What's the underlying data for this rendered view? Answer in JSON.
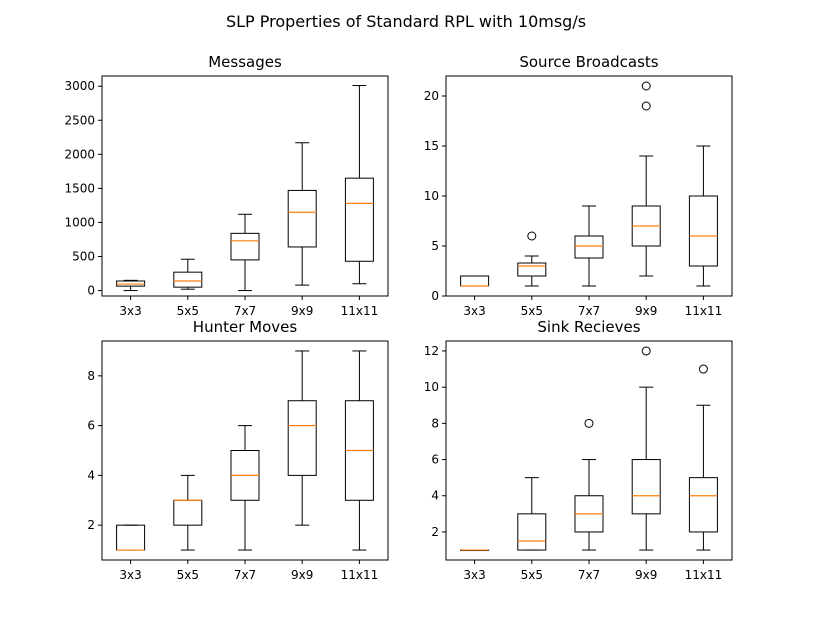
{
  "suptitle": "SLP Properties of Standard RPL with 10msg/s",
  "style": {
    "box_color": "#000000",
    "median_color": "#ff7f0e",
    "flier_color": "#000000"
  },
  "chart_data": [
    {
      "type": "box",
      "title": "Messages",
      "categories": [
        "3x3",
        "5x5",
        "7x7",
        "9x9",
        "11x11"
      ],
      "ylim": [
        -80,
        3150
      ],
      "yticks": [
        0,
        500,
        1000,
        1500,
        2000,
        2500,
        3000
      ],
      "boxes": [
        {
          "whislo": 0,
          "q1": 65,
          "med": 95,
          "q3": 140,
          "whishi": 150,
          "fliers": []
        },
        {
          "whislo": 20,
          "q1": 50,
          "med": 140,
          "q3": 270,
          "whishi": 460,
          "fliers": []
        },
        {
          "whislo": 0,
          "q1": 450,
          "med": 730,
          "q3": 840,
          "whishi": 1120,
          "fliers": []
        },
        {
          "whislo": 80,
          "q1": 640,
          "med": 1150,
          "q3": 1470,
          "whishi": 2170,
          "fliers": []
        },
        {
          "whislo": 100,
          "q1": 430,
          "med": 1280,
          "q3": 1650,
          "whishi": 3010,
          "fliers": []
        }
      ]
    },
    {
      "type": "box",
      "title": "Source Broadcasts",
      "categories": [
        "3x3",
        "5x5",
        "7x7",
        "9x9",
        "11x11"
      ],
      "ylim": [
        0,
        22
      ],
      "yticks": [
        0,
        5,
        10,
        15,
        20
      ],
      "boxes": [
        {
          "whislo": 1,
          "q1": 1,
          "med": 1,
          "q3": 2,
          "whishi": 2,
          "fliers": []
        },
        {
          "whislo": 1,
          "q1": 2,
          "med": 3,
          "q3": 3.3,
          "whishi": 4,
          "fliers": [
            6
          ]
        },
        {
          "whislo": 1,
          "q1": 3.8,
          "med": 5,
          "q3": 6,
          "whishi": 9,
          "fliers": []
        },
        {
          "whislo": 2,
          "q1": 5,
          "med": 7,
          "q3": 9,
          "whishi": 14,
          "fliers": [
            19,
            21
          ]
        },
        {
          "whislo": 1,
          "q1": 3,
          "med": 6,
          "q3": 10,
          "whishi": 15,
          "fliers": []
        }
      ]
    },
    {
      "type": "box",
      "title": "Hunter Moves",
      "categories": [
        "3x3",
        "5x5",
        "7x7",
        "9x9",
        "11x11"
      ],
      "ylim": [
        0.6,
        9.4
      ],
      "yticks": [
        2,
        4,
        6,
        8
      ],
      "boxes": [
        {
          "whislo": 1,
          "q1": 1,
          "med": 1,
          "q3": 2,
          "whishi": 2,
          "fliers": []
        },
        {
          "whislo": 1,
          "q1": 2,
          "med": 3,
          "q3": 3,
          "whishi": 4,
          "fliers": []
        },
        {
          "whislo": 1,
          "q1": 3,
          "med": 4,
          "q3": 5,
          "whishi": 6,
          "fliers": []
        },
        {
          "whislo": 2,
          "q1": 4,
          "med": 6,
          "q3": 7,
          "whishi": 9,
          "fliers": []
        },
        {
          "whislo": 1,
          "q1": 3,
          "med": 5,
          "q3": 7,
          "whishi": 9,
          "fliers": []
        }
      ]
    },
    {
      "type": "box",
      "title": "Sink Recieves",
      "categories": [
        "3x3",
        "5x5",
        "7x7",
        "9x9",
        "11x11"
      ],
      "ylim": [
        0.45,
        12.55
      ],
      "yticks": [
        2,
        4,
        6,
        8,
        10,
        12
      ],
      "boxes": [
        {
          "whislo": 1,
          "q1": 1,
          "med": 1,
          "q3": 1,
          "whishi": 1,
          "fliers": []
        },
        {
          "whislo": 1,
          "q1": 1,
          "med": 1.5,
          "q3": 3,
          "whishi": 5,
          "fliers": []
        },
        {
          "whislo": 1,
          "q1": 2,
          "med": 3,
          "q3": 4,
          "whishi": 6,
          "fliers": [
            8
          ]
        },
        {
          "whislo": 1,
          "q1": 3,
          "med": 4,
          "q3": 6,
          "whishi": 10,
          "fliers": [
            12
          ]
        },
        {
          "whislo": 1,
          "q1": 2,
          "med": 4,
          "q3": 5,
          "whishi": 9,
          "fliers": [
            11
          ]
        }
      ]
    }
  ]
}
